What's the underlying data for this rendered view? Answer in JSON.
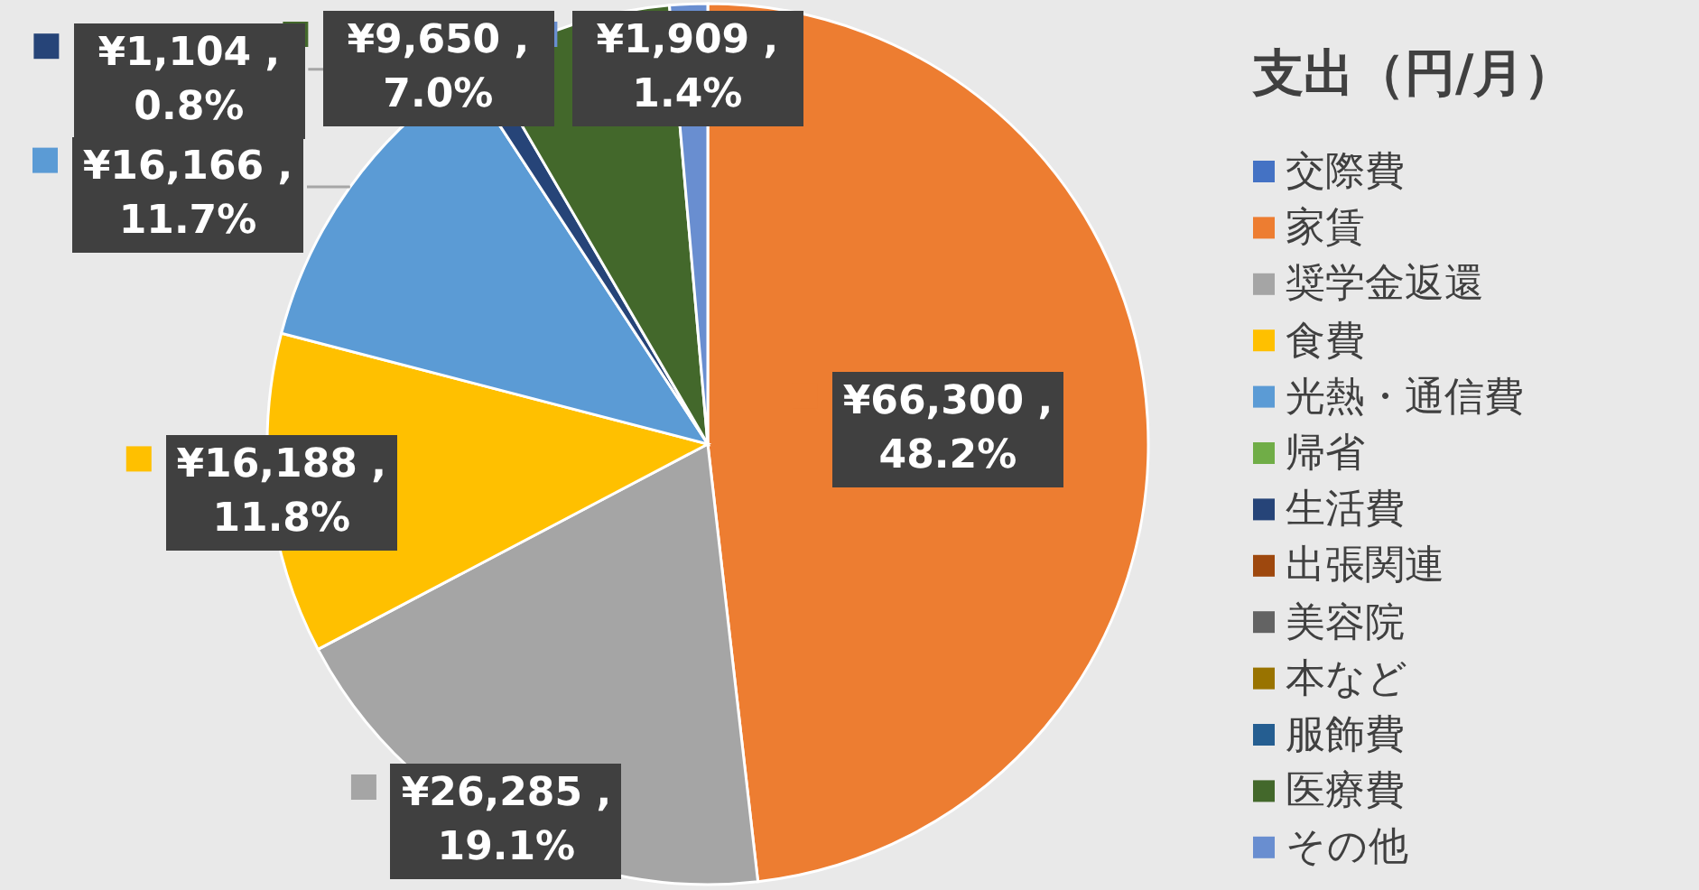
{
  "chart_data": {
    "type": "pie",
    "legend_title": "支出（円/月）",
    "legend": "right",
    "categories": [
      "交際費",
      "家賃",
      "奨学金返還",
      "食費",
      "光熱・通信費",
      "帰省",
      "生活費",
      "出張関連",
      "美容院",
      "本など",
      "服飾費",
      "医療費",
      "その他"
    ],
    "values": [
      0,
      66300,
      26285,
      16188,
      16166,
      0,
      1104,
      0,
      0,
      0,
      0,
      9650,
      1909
    ],
    "colors": [
      "#4472c4",
      "#ed7d31",
      "#a5a5a5",
      "#ffc000",
      "#5b9bd5",
      "#70ad47",
      "#264478",
      "#9e480e",
      "#636363",
      "#997300",
      "#255e91",
      "#43682b",
      "#698ed0"
    ],
    "value_labels": [
      null,
      "¥66,300 , 48.2%",
      "¥26,285 , 19.1%",
      "¥16,188 , 11.8%",
      "¥16,166 , 11.7%",
      null,
      "¥1,104 , 0.8%",
      null,
      null,
      null,
      null,
      "¥9,650 , 7.0%",
      "¥1,909 , 1.4%"
    ]
  }
}
